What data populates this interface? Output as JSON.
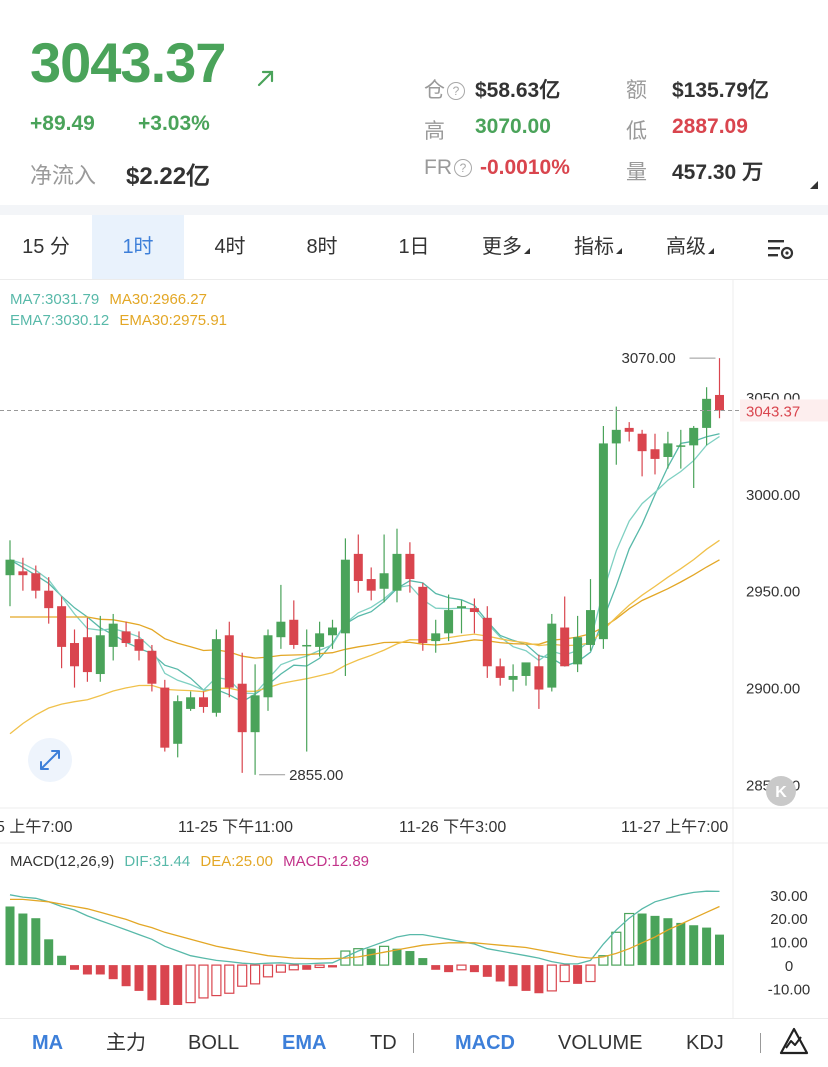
{
  "header": {
    "price": "3043.37",
    "change_abs": "+89.49",
    "change_pct": "+3.03%",
    "net_inflow_label": "净流入",
    "net_inflow_value": "$2.22亿",
    "stats": {
      "oi_label": "仓",
      "oi_value": "$58.63亿",
      "turnover_label": "额",
      "turnover_value": "$135.79亿",
      "high_label": "高",
      "high_value": "3070.00",
      "low_label": "低",
      "low_value": "2887.09",
      "fr_label": "FR",
      "fr_value": "-0.0010%",
      "volume_label": "量",
      "volume_value": "457.30 万"
    },
    "colors": {
      "up": "#4aa35a",
      "down": "#d9454e"
    }
  },
  "tabs": [
    {
      "label": "15 分",
      "active": false
    },
    {
      "label": "1时",
      "active": true
    },
    {
      "label": "4时",
      "active": false
    },
    {
      "label": "8时",
      "active": false
    },
    {
      "label": "1日",
      "active": false
    },
    {
      "label": "更多",
      "active": false,
      "dropdown": true
    },
    {
      "label": "指标",
      "active": false,
      "dropdown": true
    },
    {
      "label": "高级",
      "active": false,
      "dropdown": true
    }
  ],
  "chart_data": [
    {
      "type": "candlestick",
      "legend": {
        "ma7": "MA7:3031.79",
        "ma30": "MA30:2966.27",
        "ema7": "EMA7:3030.12",
        "ema30": "EMA30:2975.91"
      },
      "y_ticks": [
        "3050.00",
        "3000.00",
        "2950.00",
        "2900.00",
        "2850.00"
      ],
      "y_tick_values": [
        3050,
        3000,
        2950,
        2900,
        2850
      ],
      "ylim": [
        2842,
        3100
      ],
      "x_ticks": [
        "5 上午7:00",
        "11-25 下午11:00",
        "11-26 下午3:00",
        "11-27 上午7:00"
      ],
      "high_marker": "3070.00",
      "low_marker": "2855.00",
      "last_price_tag": "3043.37",
      "candles": [
        {
          "o": 2958,
          "h": 2976,
          "l": 2942,
          "c": 2966
        },
        {
          "o": 2960,
          "h": 2967,
          "l": 2950,
          "c": 2958
        },
        {
          "o": 2959,
          "h": 2963,
          "l": 2946,
          "c": 2950
        },
        {
          "o": 2950,
          "h": 2957,
          "l": 2933,
          "c": 2941
        },
        {
          "o": 2942,
          "h": 2947,
          "l": 2910,
          "c": 2921
        },
        {
          "o": 2923,
          "h": 2930,
          "l": 2900,
          "c": 2911
        },
        {
          "o": 2926,
          "h": 2936,
          "l": 2903,
          "c": 2908
        },
        {
          "o": 2907,
          "h": 2937,
          "l": 2903,
          "c": 2927
        },
        {
          "o": 2921,
          "h": 2938,
          "l": 2914,
          "c": 2933
        },
        {
          "o": 2929,
          "h": 2934,
          "l": 2921,
          "c": 2923
        },
        {
          "o": 2925,
          "h": 2929,
          "l": 2914,
          "c": 2919
        },
        {
          "o": 2919,
          "h": 2922,
          "l": 2898,
          "c": 2902
        },
        {
          "o": 2900,
          "h": 2904,
          "l": 2867,
          "c": 2869
        },
        {
          "o": 2871,
          "h": 2896,
          "l": 2864,
          "c": 2893
        },
        {
          "o": 2889,
          "h": 2898,
          "l": 2888,
          "c": 2895
        },
        {
          "o": 2895,
          "h": 2898,
          "l": 2887,
          "c": 2890
        },
        {
          "o": 2887,
          "h": 2930,
          "l": 2885,
          "c": 2925
        },
        {
          "o": 2927,
          "h": 2934,
          "l": 2895,
          "c": 2900
        },
        {
          "o": 2902,
          "h": 2918,
          "l": 2856,
          "c": 2877
        },
        {
          "o": 2877,
          "h": 2912,
          "l": 2855,
          "c": 2896
        },
        {
          "o": 2895,
          "h": 2930,
          "l": 2888,
          "c": 2927
        },
        {
          "o": 2926,
          "h": 2953,
          "l": 2920,
          "c": 2934
        },
        {
          "o": 2935,
          "h": 2945,
          "l": 2920,
          "c": 2922
        },
        {
          "o": 2922,
          "h": 2930,
          "l": 2867,
          "c": 2922
        },
        {
          "o": 2921,
          "h": 2934,
          "l": 2916,
          "c": 2928
        },
        {
          "o": 2927,
          "h": 2935,
          "l": 2920,
          "c": 2931
        },
        {
          "o": 2928,
          "h": 2977,
          "l": 2906,
          "c": 2966
        },
        {
          "o": 2969,
          "h": 2979,
          "l": 2949,
          "c": 2955
        },
        {
          "o": 2956,
          "h": 2962,
          "l": 2945,
          "c": 2950
        },
        {
          "o": 2951,
          "h": 2979,
          "l": 2944,
          "c": 2959
        },
        {
          "o": 2950,
          "h": 2982,
          "l": 2944,
          "c": 2969
        },
        {
          "o": 2969,
          "h": 2975,
          "l": 2949,
          "c": 2956
        },
        {
          "o": 2952,
          "h": 2954,
          "l": 2919,
          "c": 2923
        },
        {
          "o": 2924,
          "h": 2935,
          "l": 2918,
          "c": 2928
        },
        {
          "o": 2928,
          "h": 2948,
          "l": 2924,
          "c": 2940
        },
        {
          "o": 2941,
          "h": 2945,
          "l": 2928,
          "c": 2942
        },
        {
          "o": 2941,
          "h": 2946,
          "l": 2928,
          "c": 2939
        },
        {
          "o": 2936,
          "h": 2942,
          "l": 2905,
          "c": 2911
        },
        {
          "o": 2911,
          "h": 2915,
          "l": 2901,
          "c": 2905
        },
        {
          "o": 2904,
          "h": 2912,
          "l": 2898,
          "c": 2906
        },
        {
          "o": 2906,
          "h": 2912,
          "l": 2901,
          "c": 2913
        },
        {
          "o": 2911,
          "h": 2917,
          "l": 2889,
          "c": 2899
        },
        {
          "o": 2900,
          "h": 2938,
          "l": 2898,
          "c": 2933
        },
        {
          "o": 2931,
          "h": 2947,
          "l": 2912,
          "c": 2911
        },
        {
          "o": 2912,
          "h": 2937,
          "l": 2908,
          "c": 2926
        },
        {
          "o": 2922,
          "h": 2956,
          "l": 2919,
          "c": 2940
        },
        {
          "o": 2925,
          "h": 3035,
          "l": 2920,
          "c": 3026
        },
        {
          "o": 3026,
          "h": 3045,
          "l": 3015,
          "c": 3033
        },
        {
          "o": 3034,
          "h": 3037,
          "l": 3027,
          "c": 3032
        },
        {
          "o": 3031,
          "h": 3033,
          "l": 3009,
          "c": 3022
        },
        {
          "o": 3023,
          "h": 3031,
          "l": 3010,
          "c": 3018
        },
        {
          "o": 3019,
          "h": 3032,
          "l": 3013,
          "c": 3026
        },
        {
          "o": 3025,
          "h": 3033,
          "l": 3013,
          "c": 3025
        },
        {
          "o": 3025,
          "h": 3035,
          "l": 3003,
          "c": 3034
        },
        {
          "o": 3034,
          "h": 3055,
          "l": 3025,
          "c": 3049
        },
        {
          "o": 3051,
          "h": 3070,
          "l": 3039,
          "c": 3043
        }
      ]
    },
    {
      "type": "macd",
      "legend": {
        "title": "MACD(12,26,9)",
        "dif": "DIF:31.44",
        "dea": "DEA:25.00",
        "macd": "MACD:12.89"
      },
      "y_ticks": [
        "30.00",
        "20.00",
        "10.00",
        "0",
        "-10.00"
      ],
      "y_tick_values": [
        30,
        20,
        10,
        0,
        -10
      ],
      "ylim": [
        -20,
        38
      ],
      "hist": [
        25,
        22,
        20,
        11,
        4,
        -2,
        -4,
        -4,
        -6,
        -9,
        -11,
        -15,
        -17,
        -17,
        -16,
        -14,
        -13,
        -12,
        -9,
        -8,
        -5,
        -3,
        -2,
        -2,
        -1,
        -1,
        6,
        7,
        7,
        8,
        7,
        6,
        3,
        -2,
        -3,
        -2,
        -3,
        -5,
        -7,
        -9,
        -11,
        -12,
        -11,
        -7,
        -8,
        -7,
        4,
        14,
        22,
        22,
        21,
        20,
        18,
        17,
        16,
        13
      ],
      "dif": [
        30,
        29,
        28.5,
        27,
        25,
        23.5,
        21,
        19,
        17,
        15,
        13,
        11,
        8,
        6,
        4,
        3,
        2,
        1.5,
        0.8,
        0.5,
        0.8,
        1,
        0.5,
        0.5,
        0.8,
        1,
        3.5,
        6,
        8,
        10,
        12,
        13,
        13,
        12,
        11,
        10,
        9,
        7,
        6,
        5,
        4,
        3,
        1.5,
        0.5,
        0.5,
        2,
        9,
        15,
        20,
        24,
        27,
        28.5,
        30,
        31,
        31.5,
        31.44
      ],
      "dea": [
        28,
        28,
        27.5,
        27,
        26,
        25,
        24,
        22.5,
        21,
        19.5,
        17.5,
        16,
        14,
        12.5,
        11,
        9.5,
        8,
        7,
        6,
        5,
        4,
        3.5,
        3,
        2.8,
        2.7,
        2.8,
        3,
        3.5,
        4.5,
        5.5,
        6.5,
        7.5,
        8.5,
        9,
        9.5,
        9.5,
        9.5,
        9,
        8.5,
        8,
        7.5,
        6.5,
        5.5,
        4.5,
        3.5,
        3,
        3.5,
        5,
        7,
        9.5,
        12,
        15,
        17.5,
        20,
        22.5,
        25
      ]
    }
  ],
  "indicators": [
    {
      "label": "MA",
      "active": true
    },
    {
      "label": "主力",
      "active": false
    },
    {
      "label": "BOLL",
      "active": false
    },
    {
      "label": "EMA",
      "active": true
    },
    {
      "label": "TD",
      "active": false
    },
    {
      "label": "MACD",
      "active": true
    },
    {
      "label": "VOLUME",
      "active": false
    },
    {
      "label": "KDJ",
      "active": false
    }
  ],
  "icons": {
    "arrow": "arrow-up-right-icon",
    "help": "help-circle-icon",
    "settings": "chart-settings-icon",
    "expand": "expand-icon",
    "k": "k-badge-icon",
    "trend": "trend-icon"
  }
}
